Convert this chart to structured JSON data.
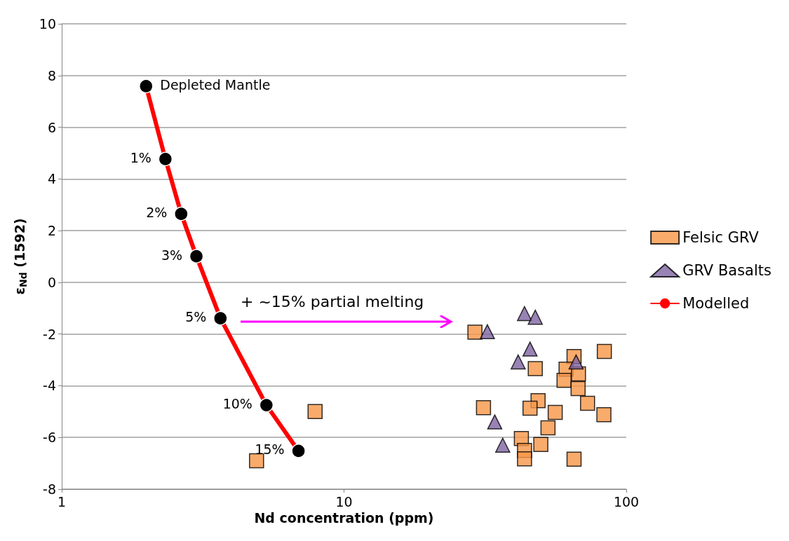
{
  "chart_data": {
    "type": "scatter",
    "xlabel": "Nd concentration (ppm)",
    "ylabel": "ε$_{Nd}$ (1592)",
    "log": "x",
    "xlim": [
      1,
      100
    ],
    "xticks": [
      1,
      10,
      100
    ],
    "ylim": [
      -8,
      10
    ],
    "yticks": [
      -8,
      -6,
      -4,
      -2,
      0,
      2,
      4,
      6,
      8,
      10
    ],
    "grid": "y",
    "legend": "right",
    "annotations": [
      "+ ~15% partial melting",
      {
        "text": "Depleted Mantle",
        "x": 1.99,
        "y": 7.59
      },
      {
        "text": "1%",
        "x": 2.33,
        "y": 4.77
      },
      {
        "text": "2%",
        "x": 2.65,
        "y": 2.65
      },
      {
        "text": "3%",
        "x": 3.0,
        "y": 1.01
      },
      {
        "text": "5%",
        "x": 3.65,
        "y": -1.39
      },
      {
        "text": "10%",
        "x": 5.31,
        "y": -4.75
      },
      {
        "text": "15%",
        "x": 6.9,
        "y": -6.52
      }
    ],
    "series": [
      {
        "name": "Felsic GRV",
        "marker": "square",
        "color": "#f79646",
        "x": [
          29.1,
          83.6,
          65.3,
          47.6,
          61.2,
          67.7,
          60.2,
          67.5,
          72.9,
          83.3,
          48.7,
          45.6,
          31.2,
          56.0,
          52.8,
          42.5,
          49.8,
          43.6,
          43.6,
          65.3,
          7.9,
          4.9
        ],
        "values": [
          -1.93,
          -2.67,
          -2.87,
          -3.34,
          -3.36,
          -3.54,
          -3.79,
          -4.11,
          -4.68,
          -5.12,
          -4.58,
          -4.87,
          -4.85,
          -5.03,
          -5.63,
          -6.04,
          -6.27,
          -6.5,
          -6.83,
          -6.84,
          -5.0,
          -6.9
        ]
      },
      {
        "name": "GRV Basalts",
        "marker": "triangle",
        "color": "#8064a2",
        "x": [
          43.6,
          47.6,
          32.2,
          45.6,
          66.4,
          41.4,
          34.2,
          36.5
        ],
        "values": [
          -1.21,
          -1.35,
          -1.91,
          -2.58,
          -3.08,
          -3.08,
          -5.4,
          -6.3
        ]
      },
      {
        "name": "Modelled",
        "type": "line",
        "marker": "circle",
        "color": "#ff0000",
        "colors": [
          "#000000",
          "#000000",
          "#000000",
          "#000000",
          "#000000",
          "#000000",
          "#000000"
        ],
        "x": [
          1.99,
          2.33,
          2.65,
          3.0,
          3.65,
          5.31,
          6.9
        ],
        "values": [
          7.59,
          4.77,
          2.65,
          1.01,
          -1.39,
          -4.75,
          -6.52
        ]
      }
    ]
  }
}
